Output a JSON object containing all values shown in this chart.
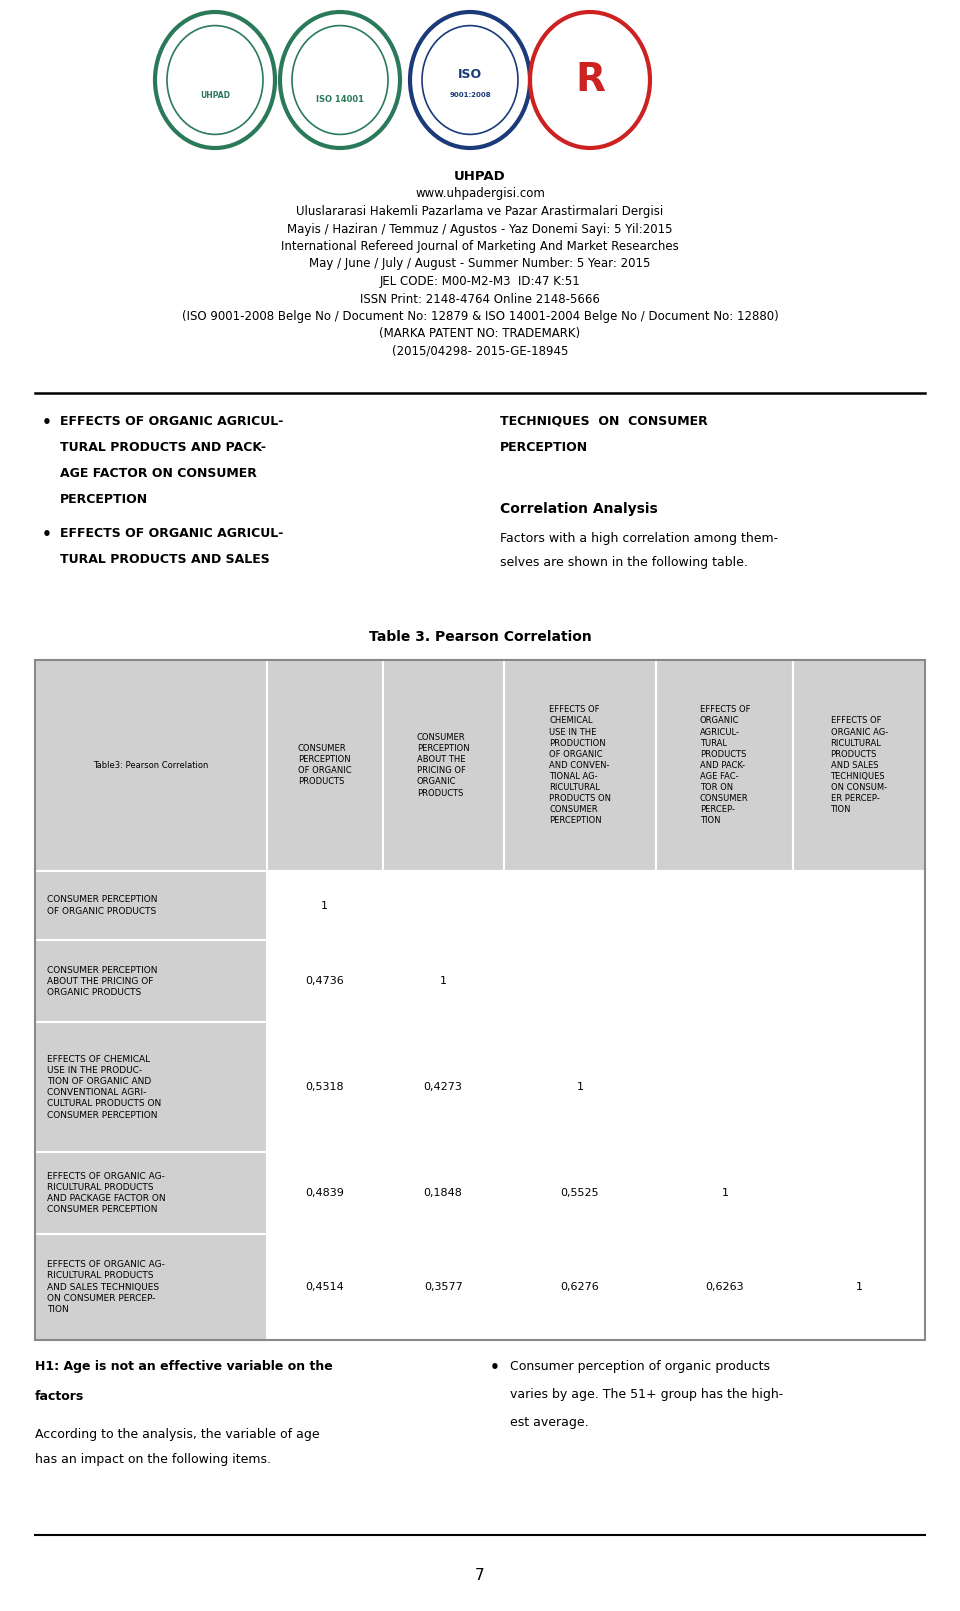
{
  "page_width": 9.6,
  "page_height": 16.11,
  "bg_color": "#ffffff",
  "header_text": [
    "UHPAD",
    "www.uhpadergisi.com",
    "Uluslararasi Hakemli Pazarlama ve Pazar Arastirmalari Dergisi",
    "Mayis / Haziran / Temmuz / Agustos - Yaz Donemi Sayi: 5 Yil:2015",
    "International Refereed Journal of Marketing And Market Researches",
    "May / June / July / August - Summer Number: 5 Year: 2015",
    "JEL CODE: M00-M2-M3  ID:47 K:51",
    "ISSN Print: 2148-4764 Online 2148-5666",
    "(ISO 9001-2008 Belge No / Document No: 12879 & ISO 14001-2004 Belge No / Document No: 12880)",
    "(MARKA PATENT NO: TRADEMARK)",
    "(2015/04298- 2015-GE-18945"
  ],
  "bullet1_lines": [
    "EFFECTS OF ORGANIC AGRICUL-",
    "TURAL PRODUCTS AND PACK-",
    "AGE FACTOR ON CONSUMER",
    "PERCEPTION"
  ],
  "bullet2_lines": [
    "EFFECTS OF ORGANIC AGRICUL-",
    "TURAL PRODUCTS AND SALES"
  ],
  "right_col_title_lines": [
    "TECHNIQUES  ON  CONSUMER",
    "PERCEPTION"
  ],
  "correlation_analysis_label": "Correlation Analysis",
  "correlation_text_line1": "Factors with a high correlation among them-",
  "correlation_text_line2": "selves are shown in the following table.",
  "table_title": "Table 3. Pearson Correlation",
  "table_header_row0": "Table3: Pearson Correlation",
  "col_headers": [
    "CONSUMER\nPERCEPTION\nOF ORGANIC\nPRODUCTS",
    "CONSUMER\nPERCEPTION\nABOUT THE\nPRICING OF\nORGANIC\nPRODUCTS",
    "EFFECTS OF\nCHEMICAL\nUSE IN THE\nPRODUCTION\nOF ORGANIC\nAND CONVEN-\nTIONAL AG-\nRICULTURAL\nPRODUCTS ON\nCONSUMER\nPERCEPTION",
    "EFFECTS OF\nORGANIC\nAGRICUL-\nTURAL\nPRODUCTS\nAND PACK-\nAGE FAC-\nTOR ON\nCONSUMER\nPERCEP-\nTION",
    "EFFECTS OF\nORGANIC AG-\nRICULTURAL\nPRODUCTS\nAND SALES\nTECHNIQUES\nON CONSUM-\nER PERCEP-\nTION"
  ],
  "row_headers": [
    "CONSUMER PERCEPTION\nOF ORGANIC PRODUCTS",
    "CONSUMER PERCEPTION\nABOUT THE PRICING OF\nORGANIC PRODUCTS",
    "EFFECTS OF CHEMICAL\nUSE IN THE PRODUC-\nTION OF ORGANIC AND\nCONVENTIONAL AGRI-\nCULTURAL PRODUCTS ON\nCONSUMER PERCEPTION",
    "EFFECTS OF ORGANIC AG-\nRICULTURAL PRODUCTS\nAND PACKAGE FACTOR ON\nCONSUMER PERCEPTION",
    "EFFECTS OF ORGANIC AG-\nRICULTURAL PRODUCTS\nAND SALES TECHNIQUES\nON CONSUMER PERCEP-\nTION"
  ],
  "table_data": [
    [
      "1",
      "",
      "",
      "",
      ""
    ],
    [
      "0,4736",
      "1",
      "",
      "",
      ""
    ],
    [
      "0,5318",
      "0,4273",
      "1",
      "",
      ""
    ],
    [
      "0,4839",
      "0,1848",
      "0,5525",
      "1",
      ""
    ],
    [
      "0,4514",
      "0,3577",
      "0,6276",
      "0,6263",
      "1"
    ]
  ],
  "table_bg": "#d0d0d0",
  "table_row_bg": "#ffffff",
  "footer_bold1": "H1: Age is not an effective variable on the",
  "footer_bold2": "factors",
  "footer_normal1": "According to the analysis, the variable of age",
  "footer_normal2": "has an impact on the following items.",
  "footer_right1": "Consumer perception of organic products",
  "footer_right2": "varies by age. The 51+ group has the high-",
  "footer_right3": "est average.",
  "page_number": "7",
  "logo_color1": "#2a7a5a",
  "logo_color2": "#2a7a5a",
  "logo_color3": "#1a3a7a",
  "logo_color4": "#cc2222"
}
